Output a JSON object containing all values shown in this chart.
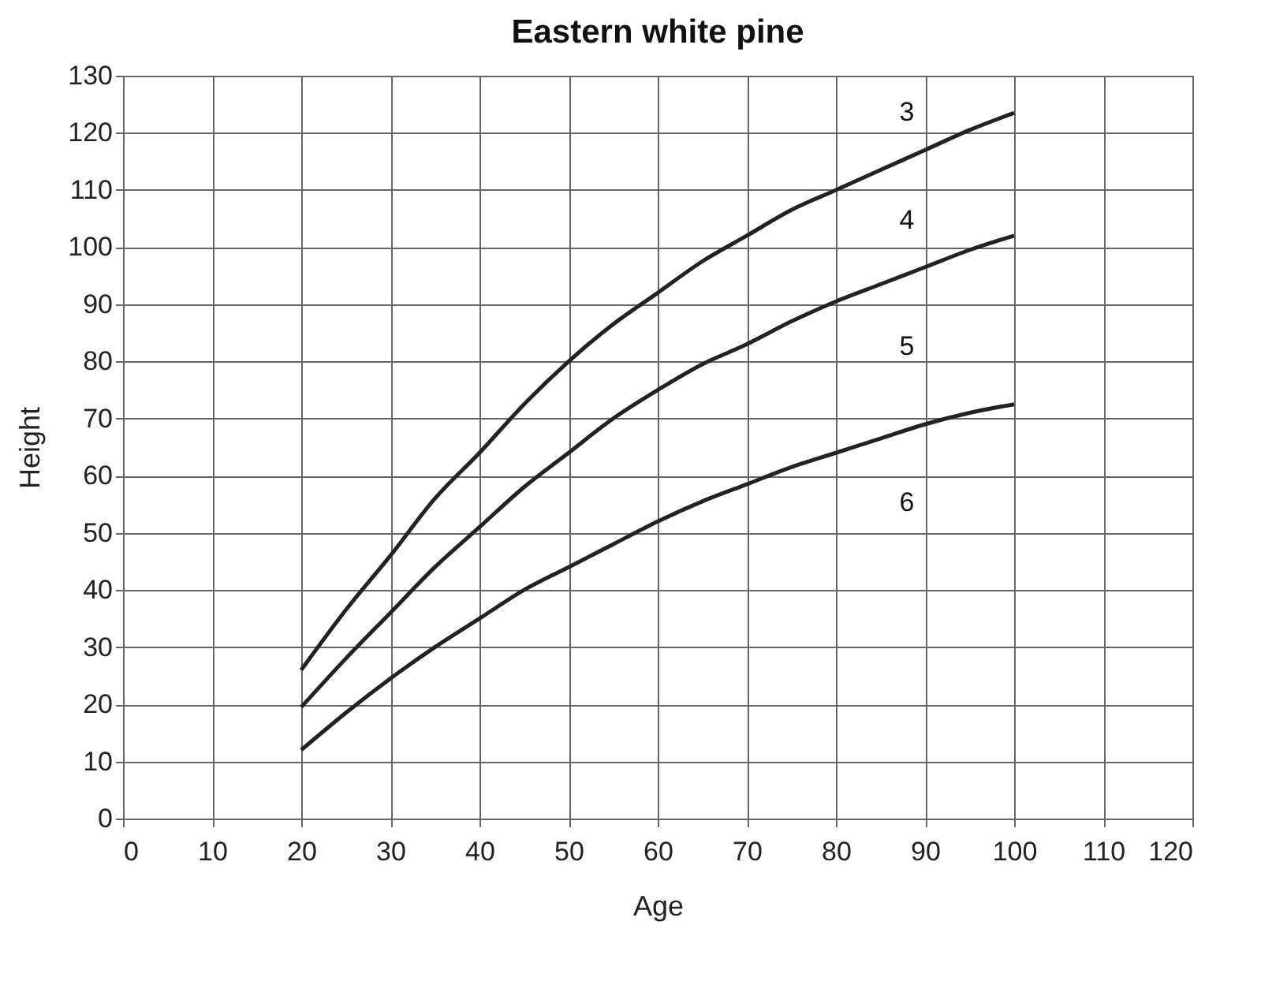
{
  "chart_data": {
    "type": "line",
    "title": "Eastern white pine",
    "xlabel": "Age",
    "ylabel": "Height",
    "x": [
      20,
      25,
      30,
      35,
      40,
      45,
      50,
      55,
      60,
      65,
      70,
      75,
      80,
      85,
      90,
      95,
      100
    ],
    "series": [
      {
        "color": "#222222",
        "values": [
          26,
          36.5,
          46,
          56,
          64,
          72.5,
          80,
          86.5,
          92,
          97.5,
          102,
          106.5,
          110,
          113.5,
          117,
          120.5,
          123.5
        ]
      },
      {
        "color": "#222222",
        "values": [
          19.5,
          28,
          36,
          44,
          51,
          58,
          64,
          70,
          75,
          79.5,
          83,
          87,
          90.5,
          93.5,
          96.5,
          99.5,
          102
        ]
      },
      {
        "color": "#222222",
        "values": [
          12,
          18.5,
          24.5,
          30,
          35,
          40,
          44,
          48,
          52,
          55.5,
          58.5,
          61.5,
          64,
          66.5,
          69,
          71,
          72.5
        ]
      }
    ],
    "annotations": [
      "3",
      "4",
      "5",
      "6"
    ],
    "xlim": [
      0,
      120
    ],
    "xticks": [
      0,
      10,
      20,
      30,
      40,
      50,
      60,
      70,
      80,
      90,
      100,
      110,
      120
    ],
    "ylim": [
      0,
      130
    ],
    "yticks": [
      0,
      10,
      20,
      30,
      40,
      50,
      60,
      70,
      80,
      90,
      100,
      110,
      120,
      130
    ],
    "grid": true,
    "legend": false,
    "line_style": "solid",
    "marker": "none"
  }
}
